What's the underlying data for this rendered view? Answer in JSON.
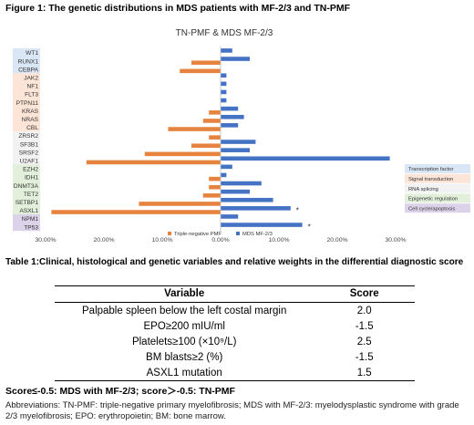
{
  "figure": {
    "caption": "Figure 1: The genetic distributions in MDS patients with MF-2/3 and TN-PMF"
  },
  "chart_data": {
    "type": "bar",
    "orientation": "horizontal-diverging",
    "title": "TN-PMF & MDS MF-2/3",
    "categories": [
      "WT1",
      "RUNX1",
      "CEBPA",
      "JAK2",
      "NF1",
      "FLT3",
      "PTPN11",
      "KRAS",
      "NRAS",
      "CBL",
      "ZRSR2",
      "SF3B1",
      "SRSF2",
      "U2AF1",
      "EZH2",
      "IDH1",
      "DNMT3A",
      "TET2",
      "SETBP1",
      "ASXL1",
      "NPM1",
      "TP53"
    ],
    "series": [
      {
        "name": "Triple-negative PMF",
        "color": "#e6843f",
        "values": [
          0,
          5,
          7,
          0,
          0,
          0,
          0,
          2,
          3,
          9,
          2,
          5,
          13,
          23,
          0,
          2,
          2,
          3,
          14,
          29,
          0,
          0
        ]
      },
      {
        "name": "MDS MF-2/3",
        "color": "#4472c4",
        "values": [
          2,
          5,
          0,
          1,
          1,
          1,
          1,
          3,
          4,
          3,
          0,
          6,
          5,
          29,
          2,
          1,
          7,
          5,
          9,
          12,
          3,
          14
        ]
      }
    ],
    "xlim": [
      -30,
      30
    ],
    "xticks": [
      -30,
      -20,
      -10,
      0,
      10,
      20,
      30
    ],
    "xtick_labels": [
      "30.00%",
      "20.00%",
      "10.00%",
      "0.00%",
      "10.00%",
      "20.00%",
      "30.00%"
    ],
    "significant": [
      "ASXL1",
      "TP53"
    ],
    "significance_marker": "*",
    "category_groups": [
      {
        "name": "Transcription factor",
        "color": "#d9e6f5",
        "first": 0,
        "last": 2
      },
      {
        "name": "Signal transduction",
        "color": "#fce4d6",
        "first": 3,
        "last": 9
      },
      {
        "name": "RNA splicing",
        "color": "#f2f2f2",
        "first": 10,
        "last": 13
      },
      {
        "name": "Epigenetic regulation",
        "color": "#e2efda",
        "first": 14,
        "last": 19
      },
      {
        "name": "Cell cycle/apoptosis",
        "color": "#dcd3eb",
        "first": 20,
        "last": 21
      }
    ],
    "legend_position": "bottom",
    "groups_legend_position": "right"
  },
  "table": {
    "caption": "Table 1:Clinical, histological and genetic variables and relative weights in the differential diagnostic score",
    "headers": {
      "variable": "Variable",
      "score": "Score"
    },
    "rows": [
      {
        "variable": "Palpable spleen below the left costal margin",
        "score": "2.0"
      },
      {
        "variable": "EPO≥200 mIU/ml",
        "score": "-1.5"
      },
      {
        "variable": "Platelets≥100 (×10⁹/L)",
        "score": "2.5"
      },
      {
        "variable": "BM blasts≥2 (%)",
        "score": "-1.5"
      },
      {
        "variable": "ASXL1 mutation",
        "score": "1.5"
      }
    ]
  },
  "score_rule": "Score≤-0.5: MDS with MF-2/3; score＞-0.5: TN-PMF",
  "abbreviations": "Abbreviations: TN-PMF: triple-negative primary myelofibrosis; MDS with MF-2/3: myelodysplastic syndrome with grade 2/3 myelofibrosis; EPO: erythropoietin; BM: bone marrow."
}
